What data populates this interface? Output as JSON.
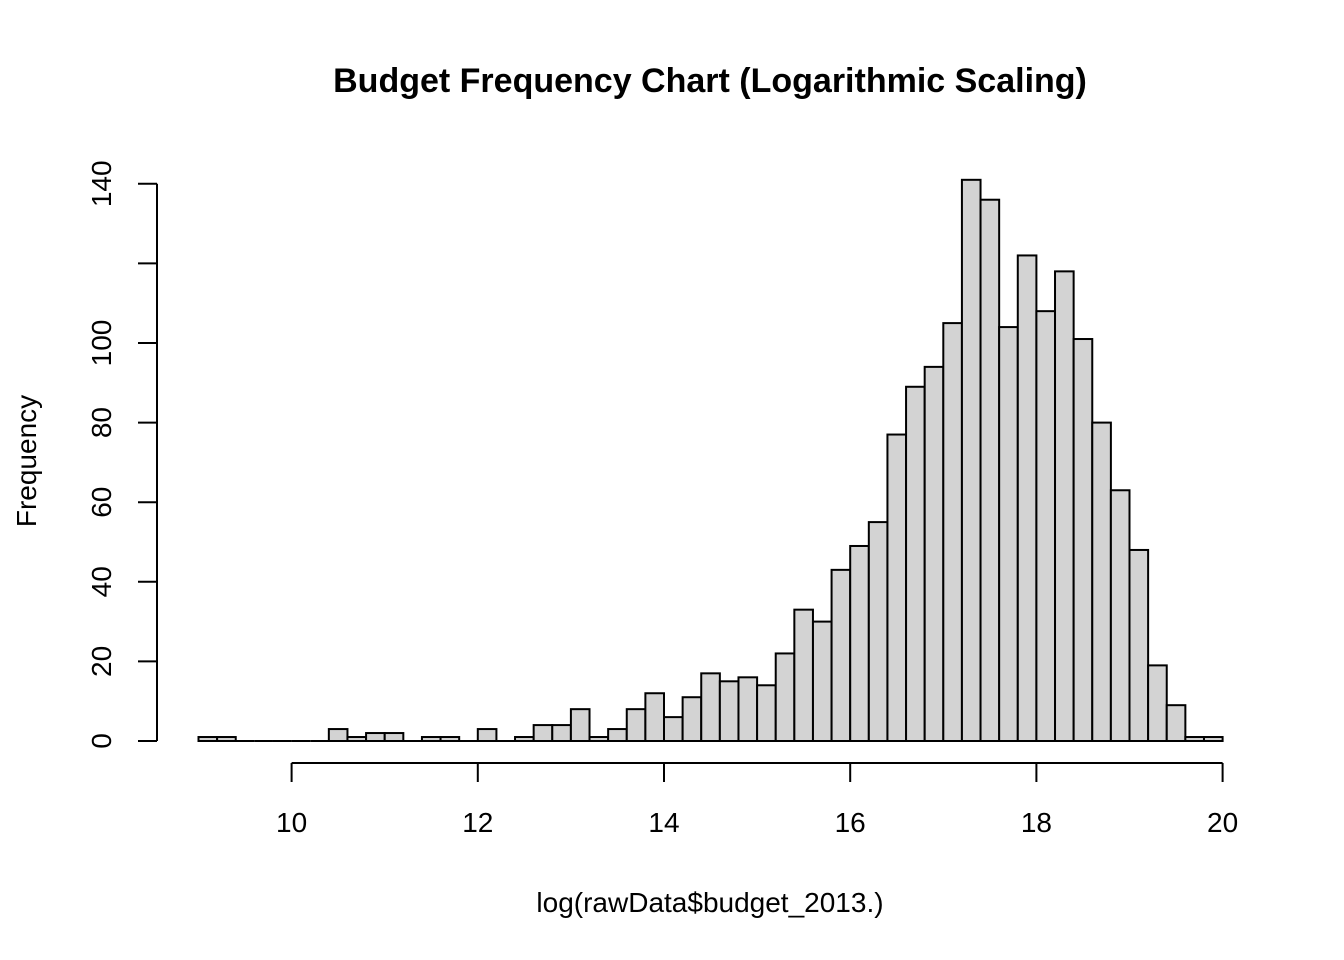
{
  "chart_data": {
    "type": "bar",
    "title": "Budget Frequency Chart (Logarithmic Scaling)",
    "xlabel": "log(rawData$budget_2013.)",
    "ylabel": "Frequency",
    "xlim": [
      9,
      20
    ],
    "ylim": [
      0,
      140
    ],
    "x_ticks": [
      10,
      12,
      14,
      16,
      18,
      20
    ],
    "y_ticks": [
      0,
      20,
      40,
      60,
      80,
      100,
      120,
      140
    ],
    "y_tick_labels": [
      "0",
      "20",
      "40",
      "60",
      "80",
      "100",
      "",
      "140"
    ],
    "bin_width": 0.2,
    "bins": [
      {
        "x0": 9.0,
        "count": 1
      },
      {
        "x0": 9.2,
        "count": 1
      },
      {
        "x0": 9.4,
        "count": 0
      },
      {
        "x0": 9.6,
        "count": 0
      },
      {
        "x0": 9.8,
        "count": 0
      },
      {
        "x0": 10.0,
        "count": 0
      },
      {
        "x0": 10.2,
        "count": 0
      },
      {
        "x0": 10.4,
        "count": 3
      },
      {
        "x0": 10.6,
        "count": 1
      },
      {
        "x0": 10.8,
        "count": 2
      },
      {
        "x0": 11.0,
        "count": 2
      },
      {
        "x0": 11.2,
        "count": 0
      },
      {
        "x0": 11.4,
        "count": 1
      },
      {
        "x0": 11.6,
        "count": 1
      },
      {
        "x0": 11.8,
        "count": 0
      },
      {
        "x0": 12.0,
        "count": 3
      },
      {
        "x0": 12.2,
        "count": 0
      },
      {
        "x0": 12.4,
        "count": 1
      },
      {
        "x0": 12.6,
        "count": 4
      },
      {
        "x0": 12.8,
        "count": 4
      },
      {
        "x0": 13.0,
        "count": 8
      },
      {
        "x0": 13.2,
        "count": 1
      },
      {
        "x0": 13.4,
        "count": 3
      },
      {
        "x0": 13.6,
        "count": 8
      },
      {
        "x0": 13.8,
        "count": 12
      },
      {
        "x0": 14.0,
        "count": 6
      },
      {
        "x0": 14.2,
        "count": 11
      },
      {
        "x0": 14.4,
        "count": 17
      },
      {
        "x0": 14.6,
        "count": 15
      },
      {
        "x0": 14.8,
        "count": 16
      },
      {
        "x0": 15.0,
        "count": 14
      },
      {
        "x0": 15.2,
        "count": 22
      },
      {
        "x0": 15.4,
        "count": 33
      },
      {
        "x0": 15.6,
        "count": 30
      },
      {
        "x0": 15.8,
        "count": 43
      },
      {
        "x0": 16.0,
        "count": 49
      },
      {
        "x0": 16.2,
        "count": 55
      },
      {
        "x0": 16.4,
        "count": 77
      },
      {
        "x0": 16.6,
        "count": 89
      },
      {
        "x0": 16.8,
        "count": 94
      },
      {
        "x0": 17.0,
        "count": 105
      },
      {
        "x0": 17.2,
        "count": 141
      },
      {
        "x0": 17.4,
        "count": 136
      },
      {
        "x0": 17.6,
        "count": 104
      },
      {
        "x0": 17.8,
        "count": 122
      },
      {
        "x0": 18.0,
        "count": 108
      },
      {
        "x0": 18.2,
        "count": 118
      },
      {
        "x0": 18.4,
        "count": 101
      },
      {
        "x0": 18.6,
        "count": 80
      },
      {
        "x0": 18.8,
        "count": 63
      },
      {
        "x0": 19.0,
        "count": 48
      },
      {
        "x0": 19.2,
        "count": 19
      },
      {
        "x0": 19.4,
        "count": 9
      },
      {
        "x0": 19.6,
        "count": 1
      },
      {
        "x0": 19.8,
        "count": 1
      }
    ]
  }
}
